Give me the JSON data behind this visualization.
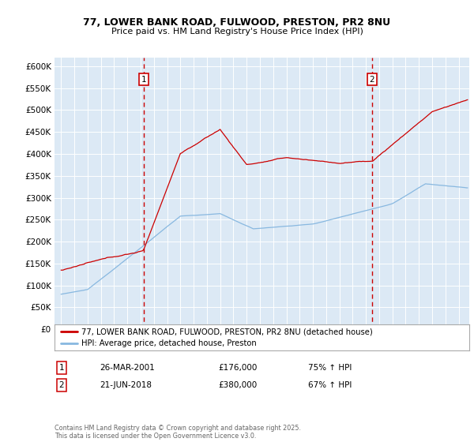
{
  "title1": "77, LOWER BANK ROAD, FULWOOD, PRESTON, PR2 8NU",
  "title2": "Price paid vs. HM Land Registry's House Price Index (HPI)",
  "legend_house": "77, LOWER BANK ROAD, FULWOOD, PRESTON, PR2 8NU (detached house)",
  "legend_hpi": "HPI: Average price, detached house, Preston",
  "purchase1_date": "26-MAR-2001",
  "purchase1_price": 176000,
  "purchase1_hpi": "75% ↑ HPI",
  "purchase2_date": "21-JUN-2018",
  "purchase2_price": 380000,
  "purchase2_hpi": "67% ↑ HPI",
  "purchase1_x": 2001.23,
  "purchase2_x": 2018.47,
  "copyright": "Contains HM Land Registry data © Crown copyright and database right 2025.\nThis data is licensed under the Open Government Licence v3.0.",
  "house_color": "#cc0000",
  "hpi_color": "#88b8e0",
  "background_color": "#dce9f5",
  "ylim": [
    0,
    620000
  ],
  "xlim": [
    1994.5,
    2025.8
  ]
}
